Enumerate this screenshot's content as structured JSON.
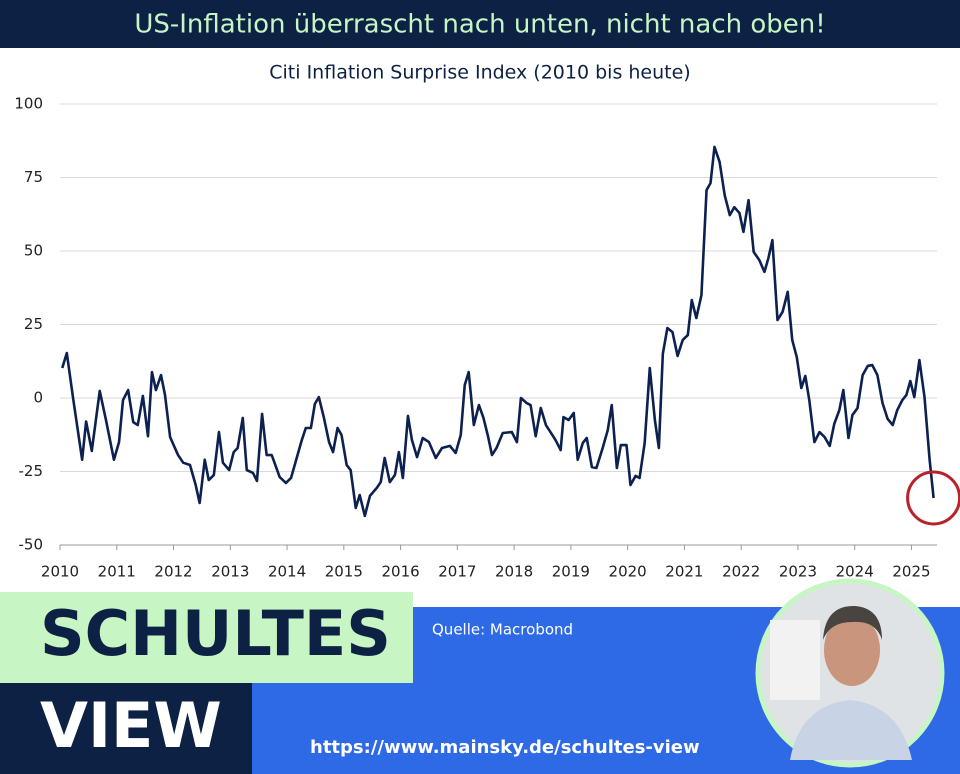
{
  "header": {
    "title": "US-Inflation überrascht nach unten, nicht nach oben!"
  },
  "chart_data": {
    "type": "line",
    "title": "Citi Inflation Surprise Index (2010 bis heute)",
    "x": [
      2010.04,
      2010.12,
      2010.23,
      2010.39,
      2010.46,
      2010.56,
      2010.7,
      2010.81,
      2010.95,
      2011.04,
      2011.11,
      2011.2,
      2011.29,
      2011.37,
      2011.46,
      2011.55,
      2011.62,
      2011.69,
      2011.78,
      2011.85,
      2011.94,
      2012.08,
      2012.17,
      2012.29,
      2012.39,
      2012.46,
      2012.55,
      2012.62,
      2012.71,
      2012.8,
      2012.87,
      2012.98,
      2013.06,
      2013.13,
      2013.22,
      2013.29,
      2013.4,
      2013.47,
      2013.56,
      2013.64,
      2013.73,
      2013.87,
      2013.98,
      2014.07,
      2014.17,
      2014.26,
      2014.33,
      2014.42,
      2014.49,
      2014.56,
      2014.65,
      2014.74,
      2014.81,
      2014.89,
      2014.96,
      2015.05,
      2015.12,
      2015.21,
      2015.28,
      2015.37,
      2015.46,
      2015.58,
      2015.65,
      2015.72,
      2015.81,
      2015.9,
      2015.97,
      2016.04,
      2016.13,
      2016.2,
      2016.29,
      2016.39,
      2016.5,
      2016.62,
      2016.73,
      2016.87,
      2016.97,
      2017.06,
      2017.13,
      2017.2,
      2017.29,
      2017.38,
      2017.46,
      2017.54,
      2017.61,
      2017.69,
      2017.8,
      2017.96,
      2018.05,
      2018.12,
      2018.22,
      2018.29,
      2018.38,
      2018.47,
      2018.56,
      2018.64,
      2018.73,
      2018.82,
      2018.87,
      2018.96,
      2019.05,
      2019.12,
      2019.21,
      2019.28,
      2019.37,
      2019.45,
      2019.56,
      2019.65,
      2019.72,
      2019.81,
      2019.88,
      2019.98,
      2020.05,
      2020.14,
      2020.21,
      2020.3,
      2020.39,
      2020.48,
      2020.55,
      2020.62,
      2020.7,
      2020.79,
      2020.88,
      2020.97,
      2021.06,
      2021.13,
      2021.21,
      2021.3,
      2021.39,
      2021.46,
      2021.53,
      2021.62,
      2021.71,
      2021.8,
      2021.88,
      2021.97,
      2022.04,
      2022.13,
      2022.22,
      2022.32,
      2022.41,
      2022.48,
      2022.55,
      2022.64,
      2022.73,
      2022.82,
      2022.9,
      2022.98,
      2023.06,
      2023.13,
      2023.2,
      2023.29,
      2023.38,
      2023.47,
      2023.56,
      2023.64,
      2023.73,
      2023.8,
      2023.89,
      2023.96,
      2024.05,
      2024.14,
      2024.23,
      2024.31,
      2024.4,
      2024.49,
      2024.58,
      2024.67,
      2024.75,
      2024.84,
      2024.91,
      2024.98,
      2025.05,
      2025.14,
      2025.23,
      2025.32,
      2025.39
    ],
    "series": [
      {
        "name": "Citi Inflation Surprise Index",
        "color": "#0d2150",
        "values": [
          10.2,
          15.3,
          0,
          -21,
          -8,
          -18,
          2.4,
          -7.5,
          -21,
          -15,
          -0.7,
          2.7,
          -8.2,
          -9.2,
          0.7,
          -13,
          8.8,
          2.7,
          7.8,
          1,
          -13.3,
          -19.4,
          -22,
          -22.8,
          -29.6,
          -35.7,
          -21,
          -27.9,
          -26.2,
          -11.6,
          -22,
          -24.5,
          -18.4,
          -17,
          -6.8,
          -24.5,
          -25.5,
          -28.2,
          -5.4,
          -19.4,
          -19.4,
          -26.9,
          -28.9,
          -27.2,
          -20.4,
          -14.3,
          -10.2,
          -10.2,
          -2,
          0.3,
          -6.8,
          -15,
          -18.4,
          -10.2,
          -12.6,
          -22.8,
          -24.5,
          -37.4,
          -33,
          -40.1,
          -33.3,
          -30.6,
          -28.6,
          -20.4,
          -28.6,
          -26.2,
          -18.4,
          -27.2,
          -6.1,
          -14.3,
          -20.1,
          -13.6,
          -15,
          -20.4,
          -17,
          -16.3,
          -18.7,
          -12.6,
          4.4,
          8.8,
          -9.2,
          -2.4,
          -6.8,
          -13,
          -19.4,
          -17,
          -11.9,
          -11.6,
          -15,
          0,
          -1.7,
          -2.4,
          -13,
          -3.4,
          -9.2,
          -11.6,
          -14.3,
          -17.7,
          -6.5,
          -7.5,
          -5.1,
          -21,
          -15.3,
          -13.6,
          -23.5,
          -23.8,
          -17,
          -10.9,
          -2.4,
          -23.8,
          -16,
          -16,
          -29.6,
          -26.5,
          -27.2,
          -15.3,
          10.2,
          -7.5,
          -17,
          15,
          23.8,
          22.4,
          14.3,
          19.7,
          21.4,
          33.3,
          27.2,
          35,
          70.7,
          73.1,
          85.4,
          80.3,
          69,
          62.2,
          64.9,
          62.9,
          56.5,
          67.3,
          49.7,
          46.9,
          42.9,
          47.6,
          53.7,
          26.5,
          29.3,
          36.1,
          19.7,
          13.9,
          3.4,
          7.5,
          -0.7,
          -15,
          -11.6,
          -13.3,
          -16.3,
          -8.8,
          -4.1,
          2.7,
          -13.6,
          -5.8,
          -3.4,
          7.8,
          10.9,
          11.2,
          7.8,
          -1.7,
          -7.1,
          -9.2,
          -4.1,
          -0.7,
          1,
          5.8,
          0.3,
          12.9,
          0.3,
          -21,
          -34
        ]
      }
    ],
    "xlim": [
      2010,
      2025.45
    ],
    "xticks": [
      2010,
      2011,
      2012,
      2013,
      2014,
      2015,
      2016,
      2017,
      2018,
      2019,
      2020,
      2021,
      2022,
      2023,
      2024,
      2025
    ],
    "ylim": [
      -50,
      100
    ],
    "yticks": [
      -50,
      -25,
      0,
      25,
      50,
      75,
      100
    ],
    "grid": true
  },
  "footer": {
    "source": "Quelle: Macrobond",
    "brand_top": "SCHULTES",
    "brand_bottom": "VIEW",
    "url": "https://www.mainsky.de/schultes-view"
  }
}
